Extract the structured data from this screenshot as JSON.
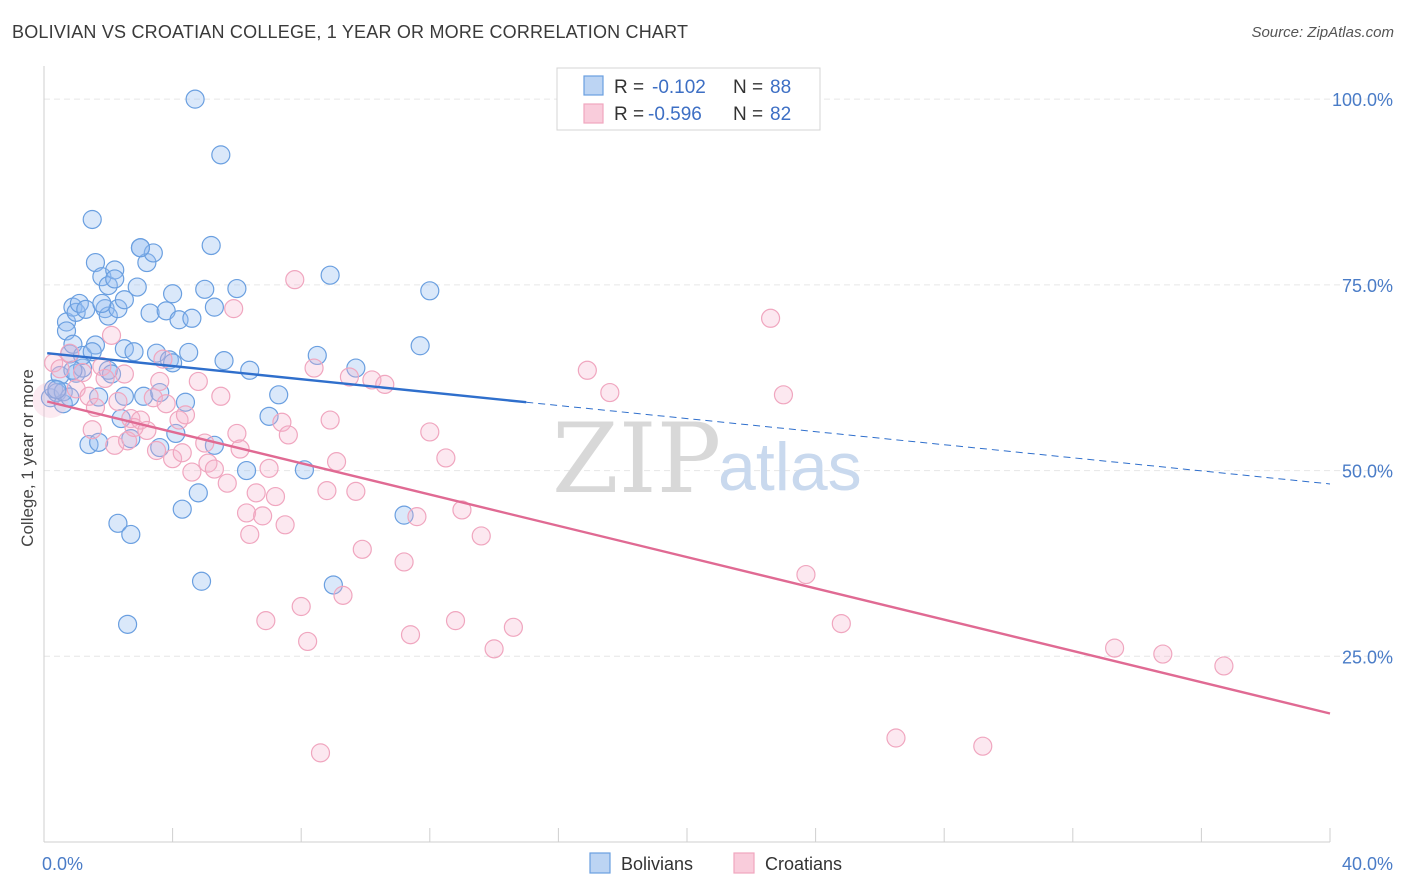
{
  "title": "BOLIVIAN VS CROATIAN COLLEGE, 1 YEAR OR MORE CORRELATION CHART",
  "source": "Source: ZipAtlas.com",
  "watermark": {
    "zip": "ZIP",
    "atlas": "atlas"
  },
  "legend": {
    "r_label": "R =",
    "n_label": "N =",
    "rows": [
      {
        "r": "-0.102",
        "n": "88"
      },
      {
        "r": "-0.596",
        "n": "82"
      }
    ]
  },
  "chart_data": {
    "type": "scatter",
    "title": "BOLIVIAN VS CROATIAN COLLEGE, 1 YEAR OR MORE CORRELATION CHART",
    "xlabel": "",
    "ylabel": "College, 1 year or more",
    "xlim": [
      0,
      40
    ],
    "ylim": [
      0,
      105
    ],
    "x_ticks": [
      "0.0%",
      "40.0%"
    ],
    "y_ticks": [
      {
        "value": 100,
        "label": "100.0%"
      },
      {
        "value": 75,
        "label": "75.0%"
      },
      {
        "value": 50,
        "label": "50.0%"
      },
      {
        "value": 25,
        "label": "25.0%"
      }
    ],
    "grid": true,
    "legend_placement": "top-center",
    "series": [
      {
        "name": "Bolivians",
        "color": "#6a9fe0",
        "line_color": "#2f6fcc",
        "r": -0.102,
        "n": 88,
        "trend": {
          "x0": 0.1,
          "y0": 65.8,
          "x1": 15.0,
          "y1": 59.2,
          "dash_x_end": 40.0,
          "dash_y_end": 48.2
        },
        "points": [
          [
            0.2,
            59.8
          ],
          [
            0.3,
            61.0
          ],
          [
            0.4,
            60.5
          ],
          [
            0.5,
            62.8
          ],
          [
            0.6,
            59.0
          ],
          [
            0.6,
            60.6
          ],
          [
            0.7,
            70.0
          ],
          [
            0.7,
            68.8
          ],
          [
            0.8,
            59.9
          ],
          [
            0.8,
            65.7
          ],
          [
            0.9,
            72.0
          ],
          [
            0.9,
            67.0
          ],
          [
            1.0,
            71.3
          ],
          [
            1.0,
            63.1
          ],
          [
            1.1,
            72.5
          ],
          [
            1.2,
            63.8
          ],
          [
            1.2,
            65.5
          ],
          [
            1.3,
            71.7
          ],
          [
            1.4,
            53.5
          ],
          [
            1.5,
            83.8
          ],
          [
            1.6,
            66.9
          ],
          [
            1.6,
            78.0
          ],
          [
            1.7,
            53.8
          ],
          [
            1.7,
            59.9
          ],
          [
            1.8,
            76.1
          ],
          [
            1.9,
            71.8
          ],
          [
            2.0,
            74.9
          ],
          [
            2.0,
            63.5
          ],
          [
            2.0,
            70.8
          ],
          [
            2.2,
            77.0
          ],
          [
            2.2,
            75.8
          ],
          [
            2.3,
            71.8
          ],
          [
            2.3,
            42.9
          ],
          [
            2.4,
            57.0
          ],
          [
            2.5,
            66.4
          ],
          [
            2.5,
            60.0
          ],
          [
            2.5,
            73.0
          ],
          [
            2.6,
            29.3
          ],
          [
            2.7,
            54.3
          ],
          [
            2.7,
            41.4
          ],
          [
            2.8,
            66.0
          ],
          [
            2.9,
            74.7
          ],
          [
            3.0,
            80.0
          ],
          [
            3.1,
            60.0
          ],
          [
            3.2,
            78.0
          ],
          [
            3.3,
            71.2
          ],
          [
            3.4,
            79.3
          ],
          [
            3.5,
            65.8
          ],
          [
            3.6,
            53.1
          ],
          [
            3.6,
            60.5
          ],
          [
            3.8,
            71.5
          ],
          [
            3.9,
            64.9
          ],
          [
            4.0,
            73.8
          ],
          [
            4.0,
            64.5
          ],
          [
            4.1,
            55.0
          ],
          [
            4.2,
            70.3
          ],
          [
            4.3,
            44.8
          ],
          [
            4.4,
            59.2
          ],
          [
            4.5,
            65.9
          ],
          [
            4.6,
            70.5
          ],
          [
            4.7,
            100.0
          ],
          [
            4.8,
            47.0
          ],
          [
            4.9,
            35.1
          ],
          [
            5.2,
            80.3
          ],
          [
            5.3,
            53.4
          ],
          [
            5.3,
            72.0
          ],
          [
            5.5,
            92.5
          ],
          [
            5.6,
            64.8
          ],
          [
            6.0,
            74.5
          ],
          [
            6.3,
            50.0
          ],
          [
            6.4,
            63.5
          ],
          [
            7.0,
            57.3
          ],
          [
            7.3,
            60.2
          ],
          [
            8.1,
            50.1
          ],
          [
            8.5,
            65.5
          ],
          [
            8.9,
            76.3
          ],
          [
            9.0,
            34.6
          ],
          [
            9.7,
            63.8
          ],
          [
            11.2,
            44.0
          ],
          [
            11.7,
            66.8
          ],
          [
            12.0,
            74.2
          ],
          [
            0.4,
            60.9
          ],
          [
            1.5,
            66.0
          ],
          [
            2.1,
            63.0
          ],
          [
            0.9,
            63.5
          ],
          [
            3.0,
            80.0
          ],
          [
            5.0,
            74.4
          ],
          [
            1.8,
            72.5
          ]
        ]
      },
      {
        "name": "Croatians",
        "color": "#f0a6bf",
        "line_color": "#e06a93",
        "r": -0.596,
        "n": 82,
        "trend": {
          "x0": 0.1,
          "y0": 59.3,
          "x1": 40.0,
          "y1": 17.3
        },
        "points": [
          [
            0.3,
            64.5
          ],
          [
            0.5,
            63.7
          ],
          [
            0.8,
            65.8
          ],
          [
            1.0,
            61.0
          ],
          [
            1.2,
            63.2
          ],
          [
            1.4,
            60.0
          ],
          [
            1.5,
            55.5
          ],
          [
            1.6,
            58.5
          ],
          [
            1.8,
            64.0
          ],
          [
            1.9,
            62.4
          ],
          [
            2.1,
            68.2
          ],
          [
            2.2,
            53.4
          ],
          [
            2.3,
            59.3
          ],
          [
            2.5,
            63.0
          ],
          [
            2.6,
            54.0
          ],
          [
            2.7,
            57.0
          ],
          [
            2.8,
            55.8
          ],
          [
            3.0,
            56.8
          ],
          [
            3.2,
            55.4
          ],
          [
            3.4,
            59.8
          ],
          [
            3.5,
            52.7
          ],
          [
            3.6,
            62.0
          ],
          [
            3.7,
            65.0
          ],
          [
            3.8,
            59.0
          ],
          [
            4.0,
            51.6
          ],
          [
            4.2,
            56.8
          ],
          [
            4.3,
            52.4
          ],
          [
            4.4,
            57.5
          ],
          [
            4.6,
            49.8
          ],
          [
            4.8,
            62.0
          ],
          [
            5.0,
            53.7
          ],
          [
            5.1,
            51.0
          ],
          [
            5.3,
            50.2
          ],
          [
            5.5,
            60.0
          ],
          [
            5.7,
            48.3
          ],
          [
            5.9,
            71.8
          ],
          [
            6.0,
            55.0
          ],
          [
            6.1,
            52.9
          ],
          [
            6.3,
            44.3
          ],
          [
            6.4,
            41.4
          ],
          [
            6.6,
            47.0
          ],
          [
            6.8,
            43.9
          ],
          [
            6.9,
            29.8
          ],
          [
            7.0,
            50.3
          ],
          [
            7.2,
            46.5
          ],
          [
            7.4,
            56.5
          ],
          [
            7.5,
            42.7
          ],
          [
            7.6,
            54.8
          ],
          [
            7.8,
            75.7
          ],
          [
            8.0,
            31.7
          ],
          [
            8.2,
            27.0
          ],
          [
            8.4,
            63.8
          ],
          [
            8.6,
            12.0
          ],
          [
            8.8,
            47.3
          ],
          [
            8.9,
            56.8
          ],
          [
            9.1,
            51.2
          ],
          [
            9.3,
            33.2
          ],
          [
            9.5,
            62.6
          ],
          [
            9.7,
            47.2
          ],
          [
            9.9,
            39.4
          ],
          [
            10.2,
            62.2
          ],
          [
            10.6,
            61.6
          ],
          [
            11.2,
            37.7
          ],
          [
            11.4,
            27.9
          ],
          [
            11.6,
            43.8
          ],
          [
            12.0,
            55.2
          ],
          [
            12.5,
            51.7
          ],
          [
            12.8,
            29.8
          ],
          [
            13.0,
            44.7
          ],
          [
            13.6,
            41.2
          ],
          [
            14.0,
            26.0
          ],
          [
            14.6,
            28.9
          ],
          [
            16.9,
            63.5
          ],
          [
            17.6,
            60.5
          ],
          [
            22.6,
            70.5
          ],
          [
            23.0,
            60.2
          ],
          [
            23.7,
            36.0
          ],
          [
            24.8,
            29.4
          ],
          [
            26.5,
            14.0
          ],
          [
            29.2,
            12.9
          ],
          [
            33.3,
            26.1
          ],
          [
            34.8,
            25.3
          ]
        ]
      }
    ],
    "extra_points_croatians": [
      [
        36.7,
        23.7
      ]
    ]
  },
  "bottom_legend": [
    "Bolivians",
    "Croatians"
  ]
}
